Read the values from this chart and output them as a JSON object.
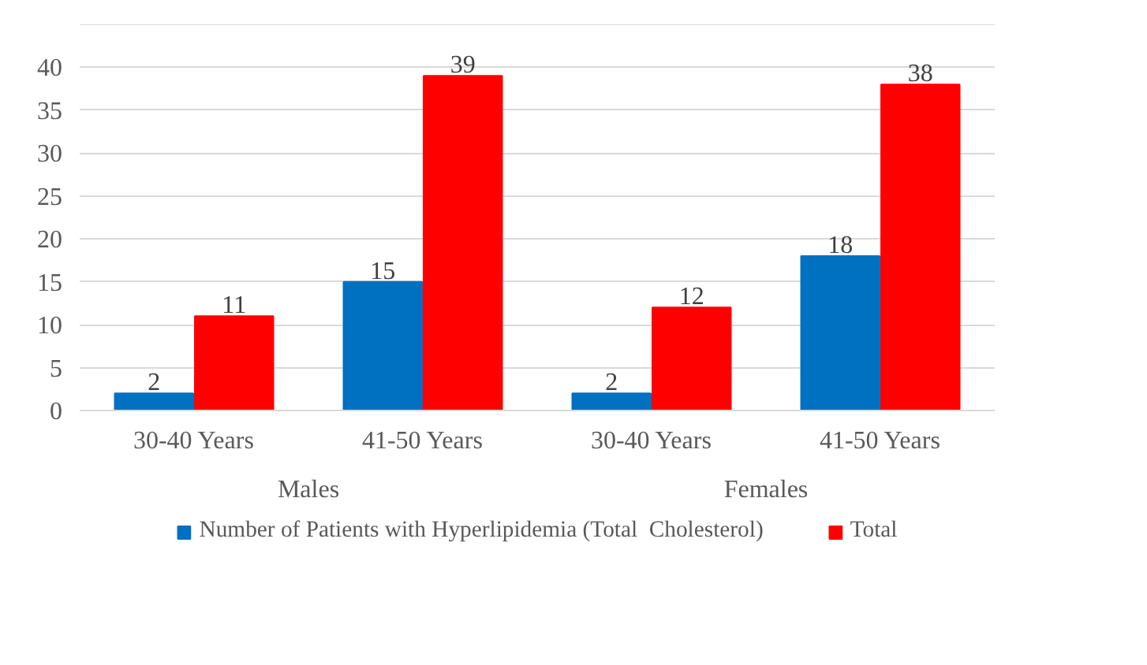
{
  "chart_data": {
    "type": "bar",
    "categories": [
      "30-40 Years",
      "41-50 Years",
      "30-40 Years",
      "41-50 Years"
    ],
    "series": [
      {
        "name": "Number of Patients with Hyperlipidemia (Total  Cholesterol)",
        "color": "#0070c0",
        "values": [
          2,
          15,
          2,
          18
        ]
      },
      {
        "name": "Total",
        "color": "#ff0000",
        "values": [
          11,
          39,
          12,
          38
        ]
      }
    ],
    "annotations": [
      "Males",
      "Females"
    ],
    "ylim": [
      0,
      45
    ],
    "yticks": [
      0,
      5,
      10,
      15,
      20,
      25,
      30,
      35,
      40,
      {
        "value": 45,
        "label": null
      }
    ],
    "grid": "y",
    "data_labels": true,
    "legend": "bottom"
  }
}
